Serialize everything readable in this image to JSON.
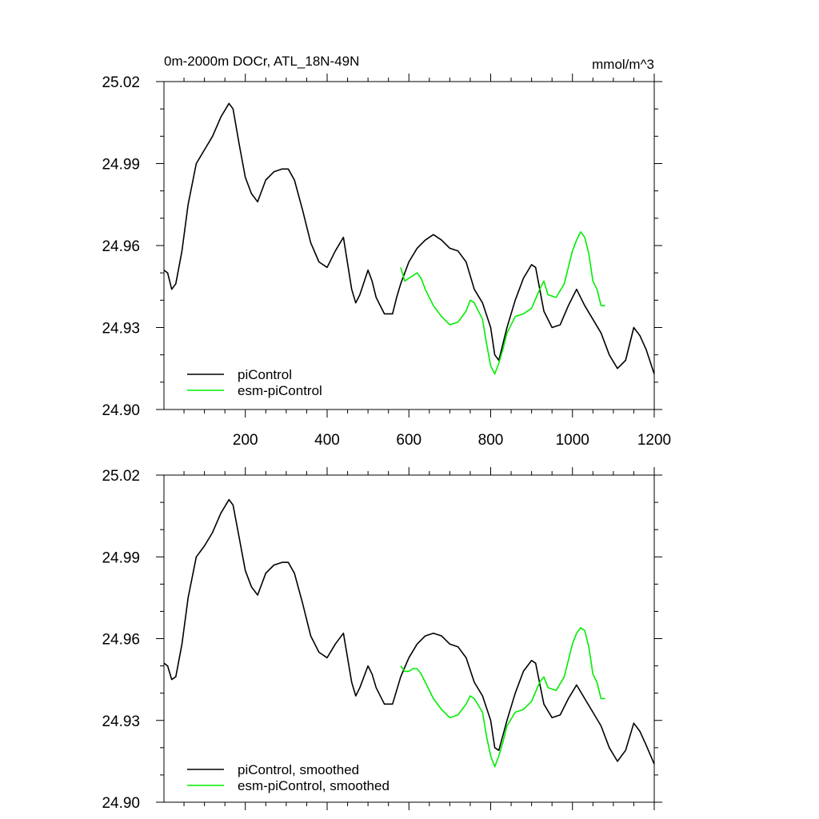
{
  "figure": {
    "title": "0m-2000m DOCr, ATL_18N-49N",
    "units": "mmol/m^3"
  },
  "colors": {
    "piControl": "#000000",
    "esm_piControl": "#00ee00",
    "axis": "#000000"
  },
  "chart_data": [
    {
      "type": "line",
      "panel": "top",
      "xlim": [
        1,
        1200
      ],
      "ylim": [
        24.9,
        25.02
      ],
      "xticks": [
        "200",
        "400",
        "600",
        "800",
        "1000",
        "1200"
      ],
      "yticks": [
        "25.02",
        "24.99",
        "24.96",
        "24.93",
        "24.90"
      ],
      "legend": [
        "piControl",
        "esm-piControl"
      ],
      "legend_position": "bottom-left",
      "series": [
        {
          "name": "piControl",
          "x": [
            1,
            10,
            20,
            30,
            45,
            60,
            80,
            100,
            120,
            140,
            160,
            170,
            185,
            200,
            215,
            230,
            250,
            270,
            290,
            305,
            320,
            340,
            360,
            380,
            400,
            420,
            440,
            460,
            470,
            480,
            500,
            510,
            520,
            540,
            560,
            570,
            580,
            600,
            620,
            640,
            660,
            680,
            700,
            720,
            740,
            760,
            780,
            800,
            810,
            820,
            840,
            860,
            880,
            900,
            910,
            930,
            950,
            970,
            990,
            1010,
            1030,
            1050,
            1070,
            1090,
            1110,
            1130,
            1150,
            1165,
            1180,
            1200
          ],
          "y": [
            24.951,
            24.95,
            24.944,
            24.946,
            24.958,
            24.975,
            24.99,
            24.995,
            25.0,
            25.007,
            25.012,
            25.01,
            24.997,
            24.985,
            24.979,
            24.976,
            24.984,
            24.987,
            24.988,
            24.988,
            24.984,
            24.973,
            24.961,
            24.954,
            24.952,
            24.958,
            24.963,
            24.944,
            24.939,
            24.942,
            24.951,
            24.947,
            24.941,
            24.935,
            24.935,
            24.941,
            24.946,
            24.954,
            24.959,
            24.962,
            24.964,
            24.962,
            24.959,
            24.958,
            24.954,
            24.944,
            24.939,
            24.93,
            24.92,
            24.918,
            24.93,
            24.94,
            24.948,
            24.953,
            24.952,
            24.936,
            24.93,
            24.931,
            24.938,
            24.944,
            24.938,
            24.933,
            24.928,
            24.92,
            24.915,
            24.918,
            24.93,
            24.927,
            24.922,
            24.913
          ]
        },
        {
          "name": "esm-piControl",
          "x": [
            580,
            590,
            600,
            610,
            620,
            630,
            640,
            660,
            680,
            700,
            720,
            740,
            750,
            760,
            780,
            790,
            800,
            810,
            820,
            830,
            840,
            860,
            880,
            900,
            920,
            930,
            940,
            960,
            980,
            1000,
            1010,
            1020,
            1030,
            1040,
            1050,
            1060,
            1070,
            1080
          ],
          "y": [
            24.952,
            24.947,
            24.948,
            24.949,
            24.95,
            24.948,
            24.944,
            24.938,
            24.934,
            24.931,
            24.932,
            24.936,
            24.94,
            24.939,
            24.933,
            24.924,
            24.916,
            24.913,
            24.917,
            24.922,
            24.928,
            24.934,
            24.935,
            24.937,
            24.944,
            24.947,
            24.942,
            24.941,
            24.946,
            24.958,
            24.962,
            24.965,
            24.963,
            24.957,
            24.947,
            24.944,
            24.938,
            24.938
          ]
        }
      ]
    },
    {
      "type": "line",
      "panel": "bottom",
      "xlim": [
        1,
        1200
      ],
      "ylim": [
        24.9,
        25.02
      ],
      "yticks": [
        "25.02",
        "24.99",
        "24.96",
        "24.93",
        "24.90"
      ],
      "legend": [
        "piControl, smoothed",
        "esm-piControl, smoothed"
      ],
      "legend_position": "bottom-left",
      "series": [
        {
          "name": "piControl, smoothed",
          "x": [
            1,
            10,
            20,
            30,
            45,
            60,
            80,
            100,
            120,
            140,
            160,
            170,
            185,
            200,
            215,
            230,
            250,
            270,
            290,
            305,
            320,
            340,
            360,
            380,
            400,
            420,
            440,
            460,
            470,
            480,
            500,
            510,
            520,
            540,
            560,
            570,
            580,
            600,
            620,
            640,
            660,
            680,
            700,
            720,
            740,
            760,
            780,
            800,
            810,
            820,
            840,
            860,
            880,
            900,
            910,
            930,
            950,
            970,
            990,
            1010,
            1030,
            1050,
            1070,
            1090,
            1110,
            1130,
            1150,
            1165,
            1180,
            1200
          ],
          "y": [
            24.951,
            24.95,
            24.945,
            24.946,
            24.958,
            24.975,
            24.99,
            24.994,
            24.999,
            25.006,
            25.011,
            25.009,
            24.997,
            24.985,
            24.979,
            24.976,
            24.984,
            24.987,
            24.988,
            24.988,
            24.984,
            24.973,
            24.961,
            24.955,
            24.953,
            24.958,
            24.962,
            24.944,
            24.939,
            24.942,
            24.95,
            24.947,
            24.942,
            24.936,
            24.936,
            24.941,
            24.946,
            24.953,
            24.958,
            24.961,
            24.962,
            24.961,
            24.958,
            24.957,
            24.953,
            24.944,
            24.939,
            24.93,
            24.92,
            24.919,
            24.93,
            24.94,
            24.948,
            24.952,
            24.951,
            24.936,
            24.931,
            24.932,
            24.938,
            24.943,
            24.938,
            24.933,
            24.928,
            24.92,
            24.915,
            24.919,
            24.929,
            24.926,
            24.921,
            24.914
          ]
        },
        {
          "name": "esm-piControl, smoothed",
          "x": [
            580,
            590,
            600,
            610,
            620,
            630,
            640,
            660,
            680,
            700,
            720,
            740,
            750,
            760,
            780,
            790,
            800,
            810,
            820,
            830,
            840,
            860,
            880,
            900,
            920,
            930,
            940,
            960,
            980,
            1000,
            1010,
            1020,
            1030,
            1040,
            1050,
            1060,
            1070,
            1080
          ],
          "y": [
            24.95,
            24.948,
            24.948,
            24.949,
            24.949,
            24.947,
            24.944,
            24.938,
            24.934,
            24.931,
            24.932,
            24.936,
            24.939,
            24.938,
            24.933,
            24.924,
            24.917,
            24.913,
            24.917,
            24.922,
            24.928,
            24.933,
            24.934,
            24.937,
            24.944,
            24.946,
            24.942,
            24.941,
            24.946,
            24.958,
            24.962,
            24.964,
            24.963,
            24.957,
            24.947,
            24.944,
            24.938,
            24.938
          ]
        }
      ]
    }
  ]
}
